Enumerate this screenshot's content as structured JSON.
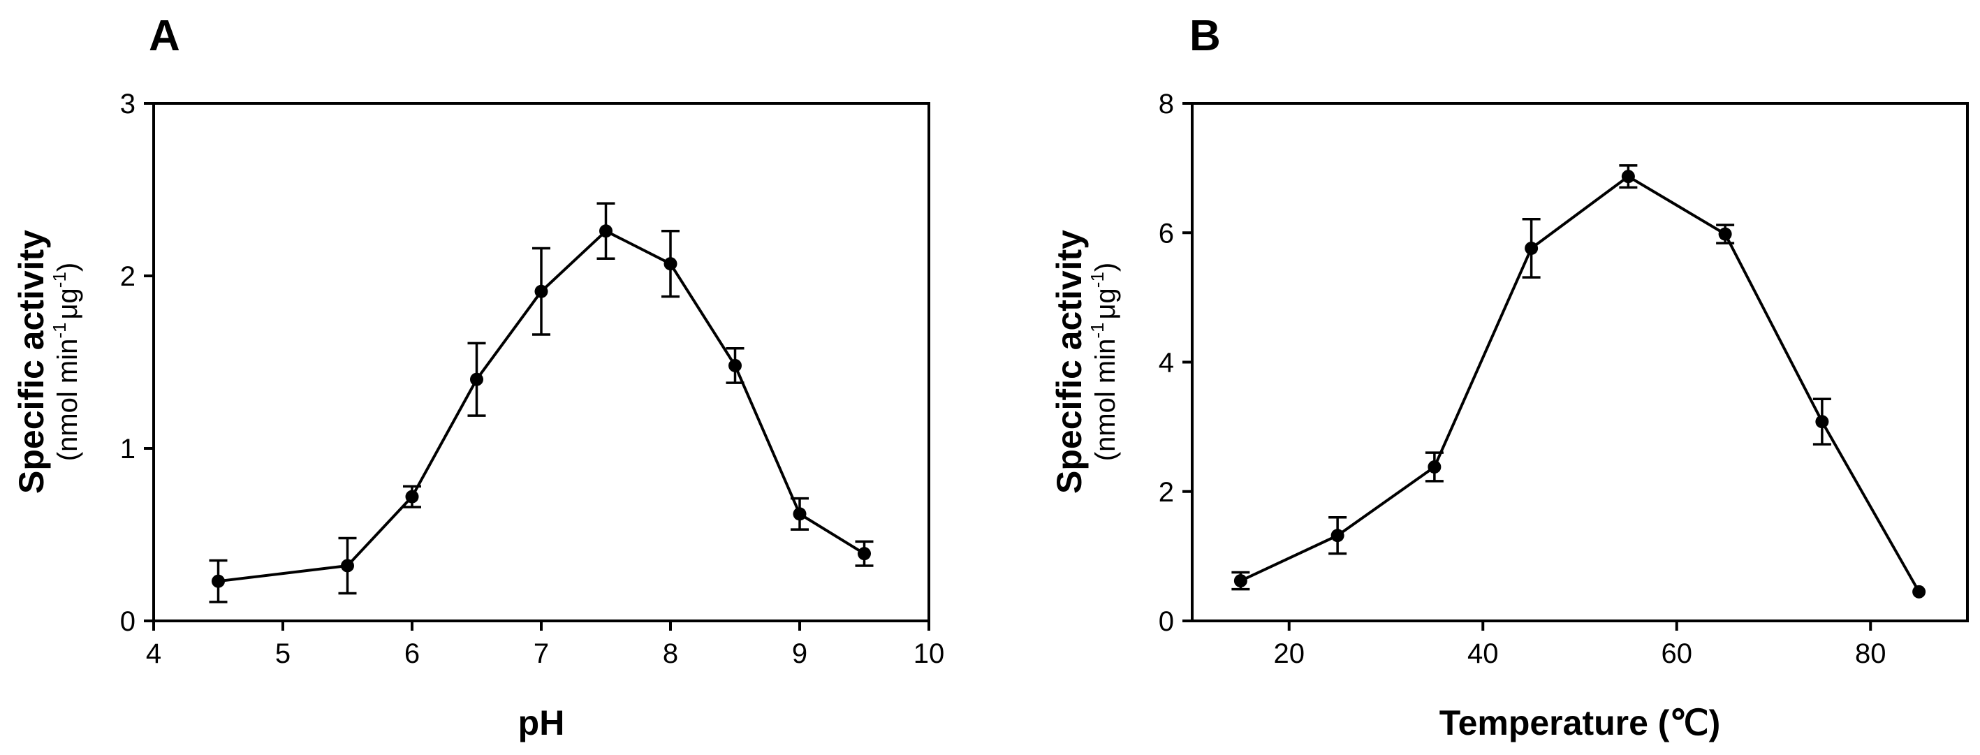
{
  "chart_data": [
    {
      "type": "line",
      "panel": "A",
      "xlabel": "pH",
      "ylabel": "Specific activity",
      "ylabel_unit": {
        "pre": "(nmol min",
        "sup1": "-1",
        "mid": "μg",
        "sup2": "-1",
        "post": ")"
      },
      "xlim": [
        4,
        10
      ],
      "ylim": [
        0,
        3
      ],
      "xticks": [
        "4",
        "5",
        "6",
        "7",
        "8",
        "9",
        "10"
      ],
      "yticks": [
        "0",
        "1",
        "2",
        "3"
      ],
      "x": [
        4.5,
        5.5,
        6.0,
        6.5,
        7.0,
        7.5,
        8.0,
        8.5,
        9.0,
        9.5
      ],
      "y": [
        0.23,
        0.32,
        0.72,
        1.4,
        1.91,
        2.26,
        2.07,
        1.48,
        0.62,
        0.39
      ],
      "err": [
        0.12,
        0.16,
        0.06,
        0.21,
        0.25,
        0.16,
        0.19,
        0.1,
        0.09,
        0.07
      ],
      "grid": false,
      "color": "#000000"
    },
    {
      "type": "line",
      "panel": "B",
      "xlabel": "Temperature (℃)",
      "ylabel": "Specific activity",
      "ylabel_unit": {
        "pre": "(nmol min",
        "sup1": "-1",
        "mid": "μg",
        "sup2": "-1",
        "post": ")"
      },
      "xlim": [
        10,
        90
      ],
      "ylim": [
        0,
        8
      ],
      "xticks": [
        "20",
        "40",
        "60",
        "80"
      ],
      "xtick_values": [
        20,
        40,
        60,
        80
      ],
      "yticks": [
        "0",
        "2",
        "4",
        "6",
        "8"
      ],
      "x": [
        15,
        25,
        35,
        45,
        55,
        65,
        75,
        85
      ],
      "y": [
        0.62,
        1.32,
        2.38,
        5.76,
        6.87,
        5.98,
        3.08,
        0.45
      ],
      "err": [
        0.13,
        0.28,
        0.22,
        0.45,
        0.17,
        0.14,
        0.35,
        0.0
      ],
      "grid": false,
      "color": "#000000"
    }
  ]
}
